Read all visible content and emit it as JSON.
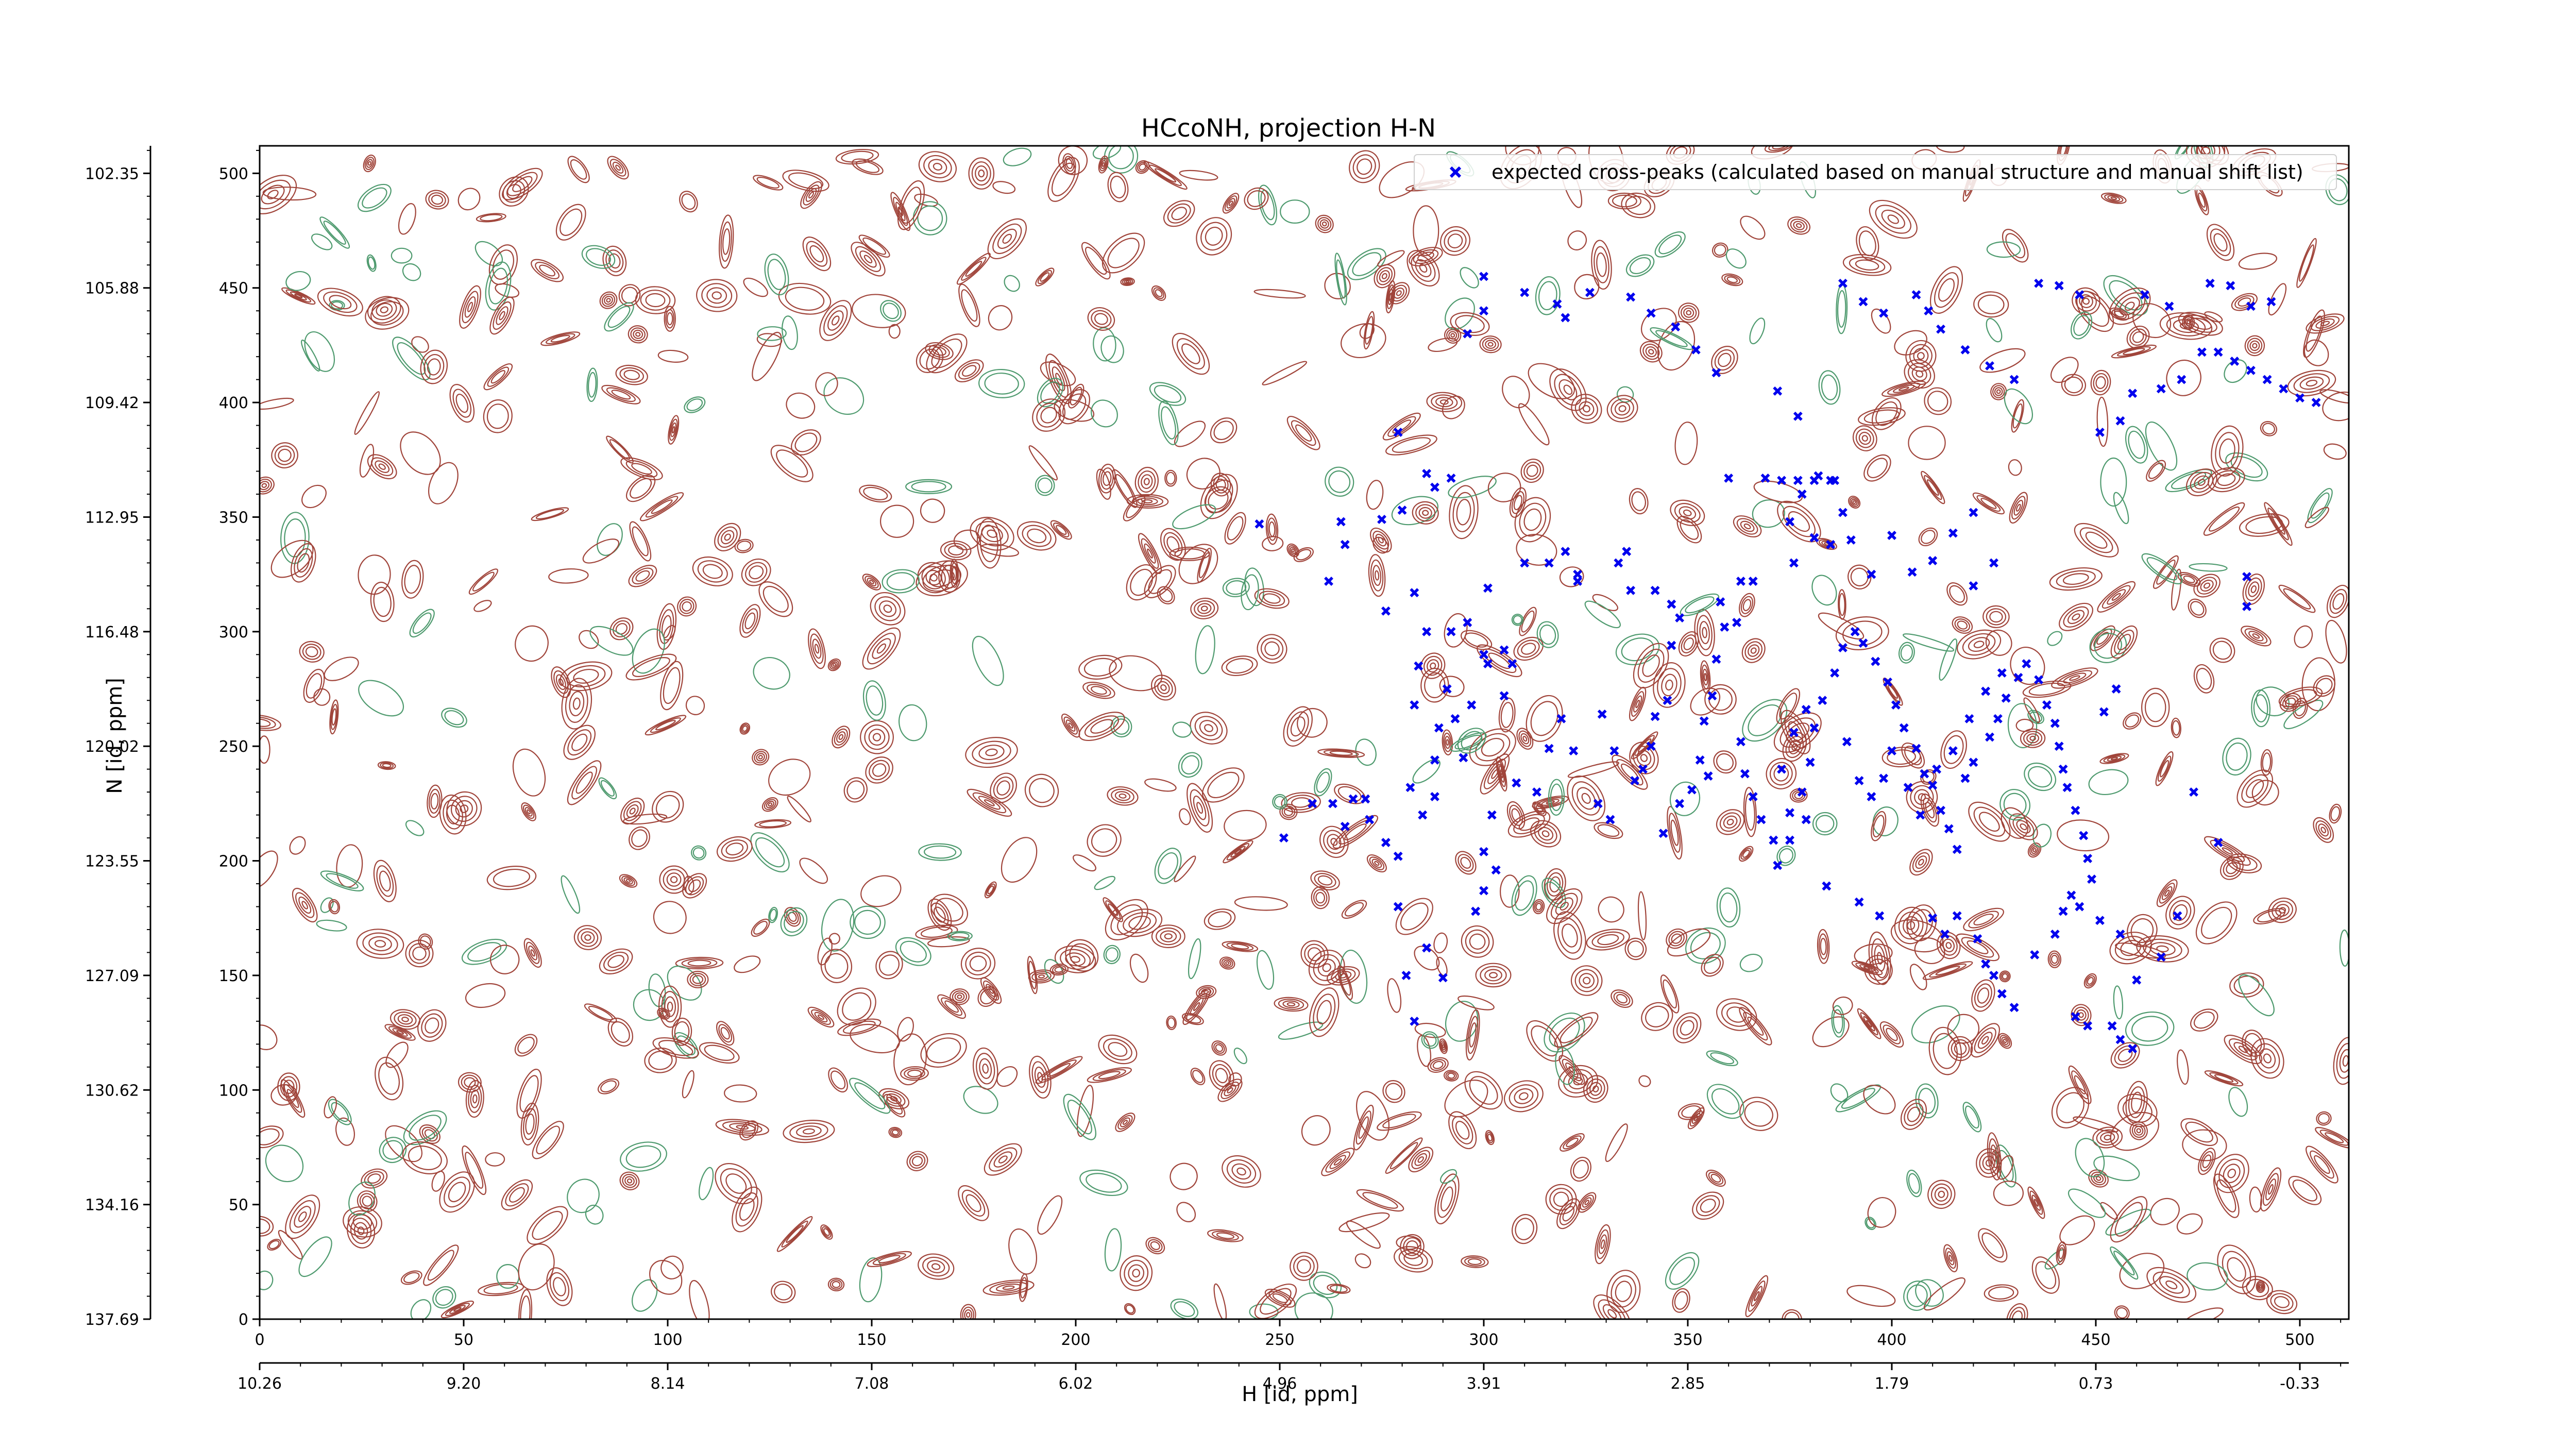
{
  "chart_data": {
    "type": "scatter",
    "title": "HCcoNH, projection H-N",
    "xlabel": "H [id, ppm]",
    "ylabel": "N [id, ppm]",
    "xlim": [
      0,
      512
    ],
    "ylim": [
      0,
      512
    ],
    "grid": false,
    "legend_position": "top-right",
    "x_index_ticks": [
      "0",
      "50",
      "100",
      "150",
      "200",
      "250",
      "300",
      "350",
      "400",
      "450",
      "500"
    ],
    "x_ppm_ticks": [
      "10.26",
      "9.20",
      "8.14",
      "7.08",
      "6.02",
      "4.96",
      "3.91",
      "2.85",
      "1.79",
      "0.73",
      "-0.33"
    ],
    "y_index_ticks": [
      "0",
      "50",
      "100",
      "150",
      "200",
      "250",
      "300",
      "350",
      "400",
      "450",
      "500"
    ],
    "y_ppm_ticks": [
      "137.69",
      "134.16",
      "130.62",
      "127.09",
      "123.55",
      "120.02",
      "116.48",
      "112.95",
      "109.42",
      "105.88",
      "102.35"
    ],
    "colors": {
      "positive_contour": "#a0443a",
      "negative_contour": "#4e9a6e",
      "marker": "#0000ee"
    },
    "series": [
      {
        "name": "expected cross-peaks (calculated based on manual structure and manual shift list)",
        "marker": "x",
        "points": [
          [
            245,
            347
          ],
          [
            262,
            322
          ],
          [
            265,
            348
          ],
          [
            266,
            338
          ],
          [
            258,
            225
          ],
          [
            263,
            225
          ],
          [
            266,
            215
          ],
          [
            268,
            227
          ],
          [
            271,
            227
          ],
          [
            272,
            218
          ],
          [
            251,
            210
          ],
          [
            276,
            208
          ],
          [
            279,
            202
          ],
          [
            282,
            232
          ],
          [
            285,
            220
          ],
          [
            288,
            228
          ],
          [
            283,
            268
          ],
          [
            284,
            285
          ],
          [
            291,
            275
          ],
          [
            288,
            244
          ],
          [
            289,
            258
          ],
          [
            293,
            262
          ],
          [
            295,
            245
          ],
          [
            297,
            268
          ],
          [
            300,
            290
          ],
          [
            305,
            272
          ],
          [
            307,
            286
          ],
          [
            300,
            204
          ],
          [
            302,
            220
          ],
          [
            308,
            234
          ],
          [
            313,
            230
          ],
          [
            316,
            249
          ],
          [
            319,
            262
          ],
          [
            322,
            248
          ],
          [
            329,
            264
          ],
          [
            332,
            248
          ],
          [
            328,
            225
          ],
          [
            331,
            218
          ],
          [
            337,
            235
          ],
          [
            339,
            240
          ],
          [
            341,
            250
          ],
          [
            342,
            263
          ],
          [
            345,
            270
          ],
          [
            346,
            294
          ],
          [
            344,
            212
          ],
          [
            348,
            225
          ],
          [
            351,
            231
          ],
          [
            353,
            244
          ],
          [
            355,
            237
          ],
          [
            354,
            261
          ],
          [
            356,
            272
          ],
          [
            357,
            288
          ],
          [
            359,
            302
          ],
          [
            362,
            304
          ],
          [
            363,
            252
          ],
          [
            364,
            238
          ],
          [
            366,
            228
          ],
          [
            368,
            218
          ],
          [
            371,
            209
          ],
          [
            375,
            221
          ],
          [
            378,
            230
          ],
          [
            380,
            243
          ],
          [
            381,
            258
          ],
          [
            383,
            270
          ],
          [
            386,
            282
          ],
          [
            388,
            293
          ],
          [
            391,
            300
          ],
          [
            393,
            295
          ],
          [
            396,
            287
          ],
          [
            399,
            278
          ],
          [
            401,
            268
          ],
          [
            403,
            258
          ],
          [
            406,
            249
          ],
          [
            408,
            238
          ],
          [
            410,
            233
          ],
          [
            412,
            222
          ],
          [
            414,
            214
          ],
          [
            416,
            205
          ],
          [
            418,
            236
          ],
          [
            420,
            243
          ],
          [
            424,
            254
          ],
          [
            426,
            262
          ],
          [
            428,
            271
          ],
          [
            431,
            280
          ],
          [
            433,
            286
          ],
          [
            436,
            279
          ],
          [
            438,
            268
          ],
          [
            440,
            260
          ],
          [
            441,
            250
          ],
          [
            442,
            240
          ],
          [
            443,
            232
          ],
          [
            445,
            222
          ],
          [
            447,
            211
          ],
          [
            448,
            201
          ],
          [
            449,
            192
          ],
          [
            452,
            265
          ],
          [
            455,
            275
          ],
          [
            373,
            240
          ],
          [
            376,
            256
          ],
          [
            379,
            266
          ],
          [
            389,
            252
          ],
          [
            392,
            235
          ],
          [
            395,
            228
          ],
          [
            398,
            236
          ],
          [
            400,
            248
          ],
          [
            404,
            232
          ],
          [
            407,
            220
          ],
          [
            411,
            240
          ],
          [
            415,
            248
          ],
          [
            419,
            262
          ],
          [
            423,
            274
          ],
          [
            427,
            282
          ],
          [
            385,
            338
          ],
          [
            390,
            340
          ],
          [
            395,
            325
          ],
          [
            400,
            342
          ],
          [
            405,
            326
          ],
          [
            410,
            331
          ],
          [
            415,
            343
          ],
          [
            420,
            352
          ],
          [
            425,
            330
          ],
          [
            420,
            320
          ],
          [
            375,
            348
          ],
          [
            378,
            360
          ],
          [
            382,
            368
          ],
          [
            386,
            366
          ],
          [
            388,
            352
          ],
          [
            360,
            367
          ],
          [
            369,
            367
          ],
          [
            373,
            366
          ],
          [
            377,
            366
          ],
          [
            381,
            366
          ],
          [
            385,
            366
          ],
          [
            376,
            330
          ],
          [
            381,
            341
          ],
          [
            358,
            313
          ],
          [
            363,
            322
          ],
          [
            366,
            322
          ],
          [
            333,
            330
          ],
          [
            335,
            335
          ],
          [
            336,
            318
          ],
          [
            342,
            318
          ],
          [
            346,
            312
          ],
          [
            348,
            306
          ],
          [
            310,
            330
          ],
          [
            316,
            330
          ],
          [
            320,
            335
          ],
          [
            323,
            325
          ],
          [
            323,
            322
          ],
          [
            301,
            319
          ],
          [
            288,
            363
          ],
          [
            292,
            367
          ],
          [
            286,
            369
          ],
          [
            279,
            387
          ],
          [
            280,
            353
          ],
          [
            275,
            349
          ],
          [
            276,
            309
          ],
          [
            283,
            317
          ],
          [
            286,
            300
          ],
          [
            292,
            300
          ],
          [
            296,
            304
          ],
          [
            301,
            286
          ],
          [
            305,
            292
          ],
          [
            279,
            180
          ],
          [
            286,
            162
          ],
          [
            281,
            150
          ],
          [
            283,
            130
          ],
          [
            290,
            149
          ],
          [
            298,
            178
          ],
          [
            300,
            187
          ],
          [
            303,
            196
          ],
          [
            372,
            198
          ],
          [
            375,
            209
          ],
          [
            379,
            218
          ],
          [
            384,
            189
          ],
          [
            392,
            182
          ],
          [
            397,
            176
          ],
          [
            410,
            175
          ],
          [
            413,
            168
          ],
          [
            416,
            176
          ],
          [
            421,
            166
          ],
          [
            423,
            155
          ],
          [
            425,
            150
          ],
          [
            427,
            142
          ],
          [
            430,
            136
          ],
          [
            435,
            159
          ],
          [
            440,
            168
          ],
          [
            442,
            178
          ],
          [
            444,
            185
          ],
          [
            446,
            180
          ],
          [
            451,
            174
          ],
          [
            445,
            132
          ],
          [
            448,
            128
          ],
          [
            454,
            128
          ],
          [
            456,
            122
          ],
          [
            459,
            118
          ],
          [
            456,
            168
          ],
          [
            460,
            148
          ],
          [
            466,
            158
          ],
          [
            470,
            176
          ],
          [
            474,
            230
          ],
          [
            480,
            208
          ],
          [
            487,
            324
          ],
          [
            487,
            311
          ],
          [
            320,
            437
          ],
          [
            300,
            455
          ],
          [
            310,
            448
          ],
          [
            300,
            440
          ],
          [
            296,
            430
          ],
          [
            318,
            443
          ],
          [
            326,
            448
          ],
          [
            336,
            446
          ],
          [
            341,
            439
          ],
          [
            347,
            433
          ],
          [
            352,
            423
          ],
          [
            357,
            413
          ],
          [
            372,
            405
          ],
          [
            377,
            394
          ],
          [
            388,
            452
          ],
          [
            393,
            444
          ],
          [
            398,
            439
          ],
          [
            406,
            447
          ],
          [
            409,
            440
          ],
          [
            412,
            432
          ],
          [
            418,
            423
          ],
          [
            424,
            416
          ],
          [
            430,
            410
          ],
          [
            436,
            452
          ],
          [
            441,
            451
          ],
          [
            446,
            447
          ],
          [
            462,
            447
          ],
          [
            468,
            442
          ],
          [
            478,
            452
          ],
          [
            483,
            451
          ],
          [
            488,
            442
          ],
          [
            493,
            444
          ],
          [
            451,
            387
          ],
          [
            456,
            392
          ],
          [
            459,
            404
          ],
          [
            466,
            406
          ],
          [
            471,
            410
          ],
          [
            476,
            422
          ],
          [
            480,
            422
          ],
          [
            484,
            418
          ],
          [
            488,
            414
          ],
          [
            492,
            410
          ],
          [
            496,
            406
          ],
          [
            500,
            402
          ],
          [
            504,
            400
          ]
        ]
      }
    ]
  }
}
